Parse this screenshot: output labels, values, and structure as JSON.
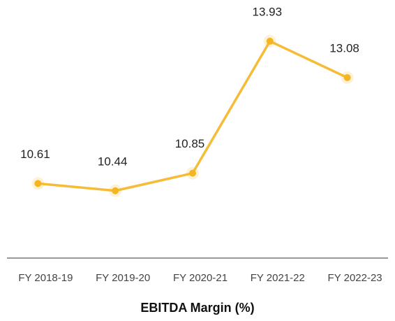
{
  "chart_data": {
    "type": "line",
    "title": "EBITDA Margin (%)",
    "categories": [
      "FY 2018-19",
      "FY 2019-20",
      "FY 2020-21",
      "FY 2021-22",
      "FY 2022-23"
    ],
    "values": [
      10.61,
      10.44,
      10.85,
      13.93,
      13.08
    ],
    "color": "#f5b521",
    "ylim": [
      9,
      14.5
    ]
  }
}
